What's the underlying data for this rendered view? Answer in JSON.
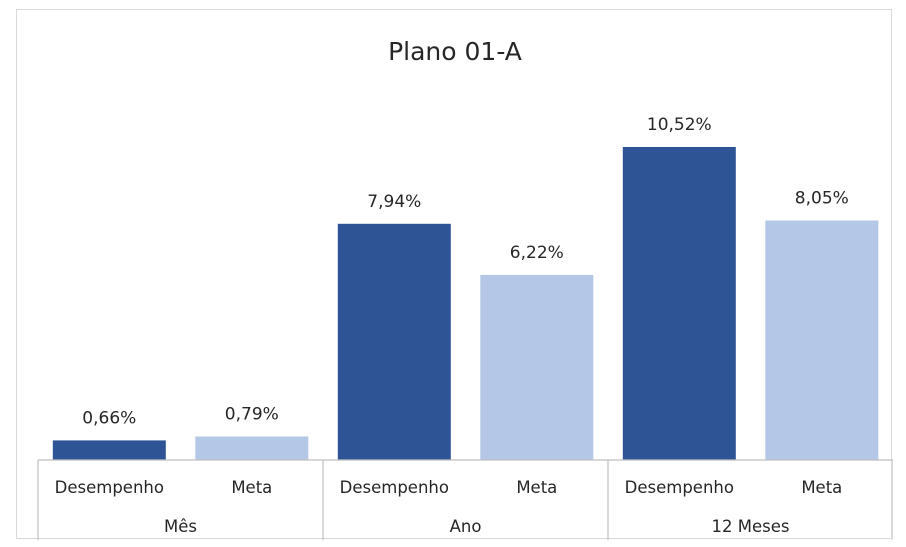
{
  "chart_data": {
    "type": "bar",
    "title": "Plano 01-A",
    "groups": [
      {
        "label": "Mês",
        "bars": [
          {
            "category": "Desempenho",
            "value": 0.66,
            "label": "0,66%",
            "series": "Desempenho"
          },
          {
            "category": "Meta",
            "value": 0.79,
            "label": "0,79%",
            "series": "Meta"
          }
        ]
      },
      {
        "label": "Ano",
        "bars": [
          {
            "category": "Desempenho",
            "value": 7.94,
            "label": "7,94%",
            "series": "Desempenho"
          },
          {
            "category": "Meta",
            "value": 6.22,
            "label": "6,22%",
            "series": "Meta"
          }
        ]
      },
      {
        "label": "12 Meses",
        "bars": [
          {
            "category": "Desempenho",
            "value": 10.52,
            "label": "10,52%",
            "series": "Desempenho"
          },
          {
            "category": "Meta",
            "value": 8.05,
            "label": "8,05%",
            "series": "Meta"
          }
        ]
      }
    ],
    "colors": {
      "Desempenho": "#2f5496",
      "Meta": "#b4c7e7"
    },
    "ylim": [
      0,
      10.52
    ],
    "grid": false,
    "legend": "none",
    "xlabel": "",
    "ylabel": ""
  }
}
